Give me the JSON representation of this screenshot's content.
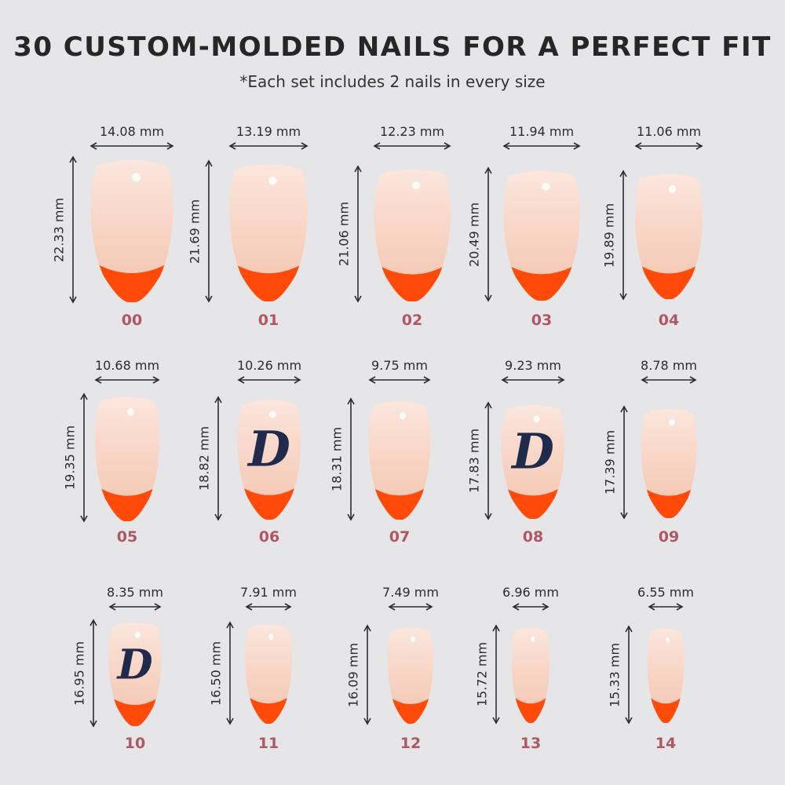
{
  "header": {
    "title": "30 CUSTOM-MOLDED NAILS FOR A PERFECT FIT",
    "subtitle": "*Each set includes 2 nails in every size"
  },
  "colors": {
    "background": "#e6e6e8",
    "nail_base": "#f7d6c8",
    "nail_tip": "#ff4a0a",
    "size_label": "#b05766",
    "logo": "#1f2a4d"
  },
  "logo_glyph": "D",
  "nails": [
    {
      "size": "00",
      "width": "14.08 mm",
      "length": "22.33 mm",
      "logo": false
    },
    {
      "size": "01",
      "width": "13.19 mm",
      "length": "21.69 mm",
      "logo": false
    },
    {
      "size": "02",
      "width": "12.23 mm",
      "length": "21.06 mm",
      "logo": false
    },
    {
      "size": "03",
      "width": "11.94 mm",
      "length": "20.49 mm",
      "logo": false
    },
    {
      "size": "04",
      "width": "11.06 mm",
      "length": "19.89 mm",
      "logo": false
    },
    {
      "size": "05",
      "width": "10.68 mm",
      "length": "19.35 mm",
      "logo": false
    },
    {
      "size": "06",
      "width": "10.26 mm",
      "length": "18.82 mm",
      "logo": true
    },
    {
      "size": "07",
      "width": "9.75 mm",
      "length": "18.31 mm",
      "logo": false
    },
    {
      "size": "08",
      "width": "9.23 mm",
      "length": "17.83 mm",
      "logo": true
    },
    {
      "size": "09",
      "width": "8.78 mm",
      "length": "17.39 mm",
      "logo": false
    },
    {
      "size": "10",
      "width": "8.35 mm",
      "length": "16.95 mm",
      "logo": true
    },
    {
      "size": "11",
      "width": "7.91 mm",
      "length": "16.50 mm",
      "logo": false
    },
    {
      "size": "12",
      "width": "7.49 mm",
      "length": "16.09 mm",
      "logo": false
    },
    {
      "size": "13",
      "width": "6.96 mm",
      "length": "15.72 mm",
      "logo": false
    },
    {
      "size": "14",
      "width": "6.55 mm",
      "length": "15.33 mm",
      "logo": false
    }
  ]
}
